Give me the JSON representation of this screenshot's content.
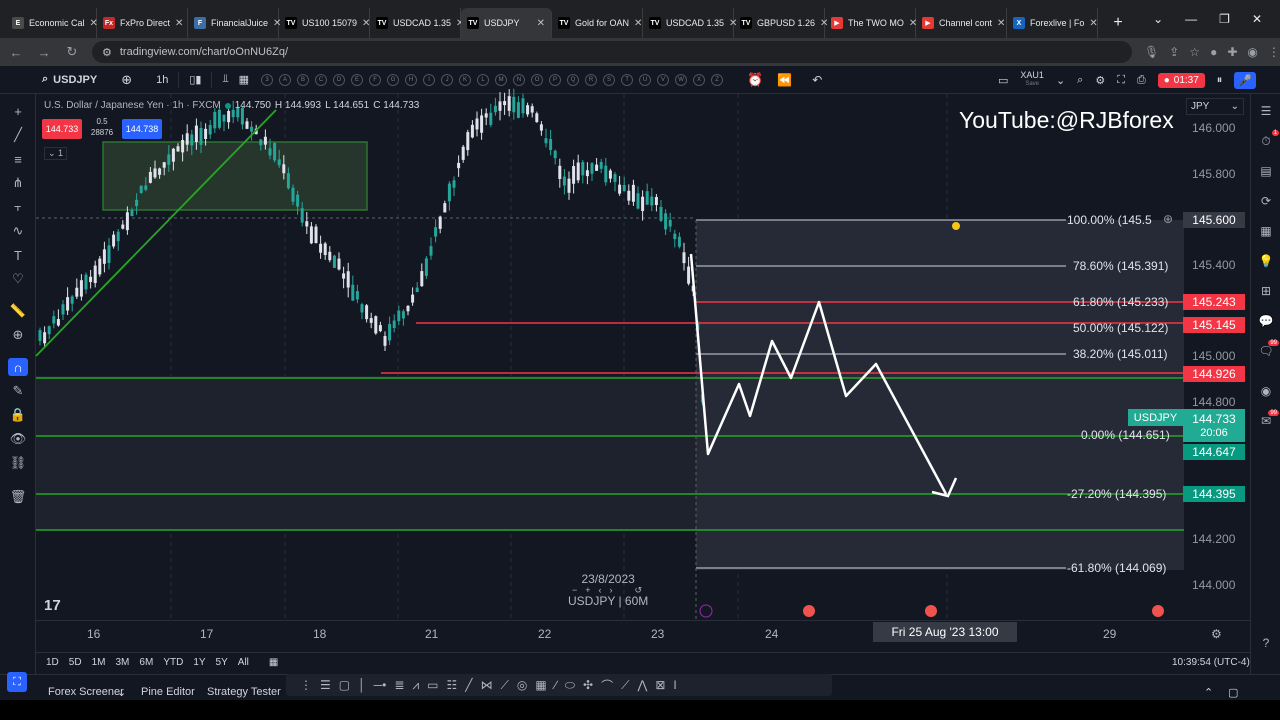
{
  "browser": {
    "tabs": [
      {
        "label": "Economic Cal",
        "icon_color": "#4a4a4a",
        "icon_text": "E"
      },
      {
        "label": "FxPro Direct",
        "icon_color": "#c62828",
        "icon_text": "Fx"
      },
      {
        "label": "FinancialJuice",
        "icon_color": "#3b6ea5",
        "icon_text": "F"
      },
      {
        "label": "US100 15079",
        "icon_color": "#131722",
        "icon_text": "TV"
      },
      {
        "label": "USDCAD 1.35",
        "icon_color": "#131722",
        "icon_text": "TV"
      },
      {
        "label": "USDJPY",
        "icon_color": "#131722",
        "icon_text": "TV"
      },
      {
        "label": "Gold for OAN",
        "icon_color": "#131722",
        "icon_text": "TV"
      },
      {
        "label": "USDCAD 1.35",
        "icon_color": "#131722",
        "icon_text": "TV"
      },
      {
        "label": "GBPUSD 1.26",
        "icon_color": "#131722",
        "icon_text": "TV"
      },
      {
        "label": "The TWO MO",
        "icon_color": "#e53935",
        "icon_text": "▶"
      },
      {
        "label": "Channel cont",
        "icon_color": "#e53935",
        "icon_text": "▶"
      },
      {
        "label": "Forexlive | Fo",
        "icon_color": "#1565c0",
        "icon_text": "X"
      }
    ],
    "url": "tradingview.com/chart/oOnNU6Zq/"
  },
  "toolbar": {
    "symbol": "USDJPY",
    "timeframe": "1h",
    "compare_symbol": "XAU1",
    "compare_sub": "Save",
    "record_time": "01:37",
    "avatar_badge": "35"
  },
  "legend": {
    "title": "U.S. Dollar / Japanese Yen · 1h · FXCM",
    "open": "144.750",
    "high": "H 144.993",
    "low": "L 144.651",
    "close": "C 144.733",
    "sell_price": "144.733",
    "buy_price": "144.738",
    "spread_top": "0.5",
    "spread_bottom": "28876",
    "collapse_count": "1"
  },
  "watermark": "YouTube:@RJBforex",
  "currency": "JPY",
  "price_axis": {
    "labels": [
      "146.000",
      "145.800",
      "145.400",
      "145.000",
      "144.800",
      "144.200",
      "144.000"
    ]
  },
  "price_tags": [
    {
      "value": "145.600",
      "color": "#363a45"
    },
    {
      "value": "145.243",
      "color": "#f23645"
    },
    {
      "value": "145.145",
      "color": "#f23645"
    },
    {
      "value": "144.926",
      "color": "#f23645"
    },
    {
      "value": "144.647",
      "color": "#089981"
    },
    {
      "value": "144.395",
      "color": "#089981"
    }
  ],
  "current_price": {
    "symbol": "USDJPY",
    "price": "144.733",
    "countdown": "20:06"
  },
  "fib_levels": [
    "100.00% (145.5",
    "78.60% (145.391)",
    "61.80% (145.233)",
    "50.00% (145.122)",
    "38.20% (145.011)",
    "0.00% (144.651)",
    "-27.20% (144.395)",
    "-61.80% (144.069)"
  ],
  "time_axis": {
    "labels": [
      "16",
      "17",
      "18",
      "21",
      "22",
      "23",
      "24",
      "29"
    ],
    "crosshair": "Fri 25 Aug '23   13:00"
  },
  "replay": {
    "date": "23/8/2023",
    "label": "USDJPY | 60M"
  },
  "logo": "17",
  "ranges": [
    "1D",
    "5D",
    "1M",
    "3M",
    "6M",
    "YTD",
    "1Y",
    "5Y",
    "All"
  ],
  "clock": "10:39:54 (UTC-4)",
  "bottom_tabs": [
    "Forex Screener",
    "Pine Editor",
    "Strategy Tester"
  ]
}
